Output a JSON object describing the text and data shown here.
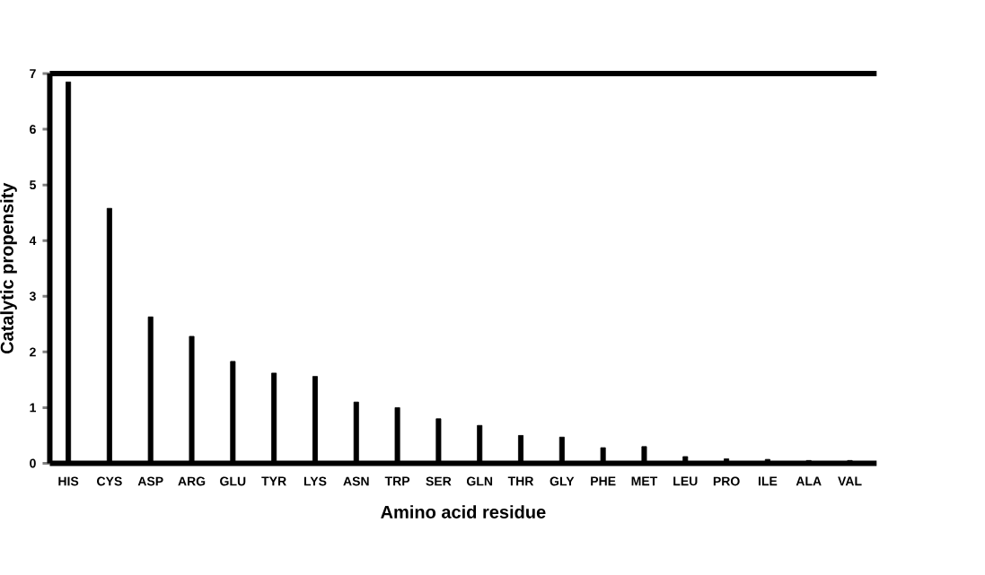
{
  "chart_data": {
    "type": "bar",
    "xlabel": "Amino acid residue",
    "ylabel": "Catalytic propensity",
    "categories": [
      "HIS",
      "CYS",
      "ASP",
      "ARG",
      "GLU",
      "TYR",
      "LYS",
      "ASN",
      "TRP",
      "SER",
      "GLN",
      "THR",
      "GLY",
      "PHE",
      "MET",
      "LEU",
      "PRO",
      "ILE",
      "ALA",
      "VAL"
    ],
    "values": [
      6.85,
      4.58,
      2.63,
      2.28,
      1.83,
      1.62,
      1.56,
      1.1,
      1.0,
      0.8,
      0.68,
      0.5,
      0.47,
      0.28,
      0.3,
      0.12,
      0.08,
      0.07,
      0.05,
      0.05
    ],
    "color": "#000000",
    "ylim": [
      0,
      7
    ],
    "yticks": [
      0,
      1,
      2,
      3,
      4,
      5,
      6,
      7
    ],
    "grid": false
  }
}
